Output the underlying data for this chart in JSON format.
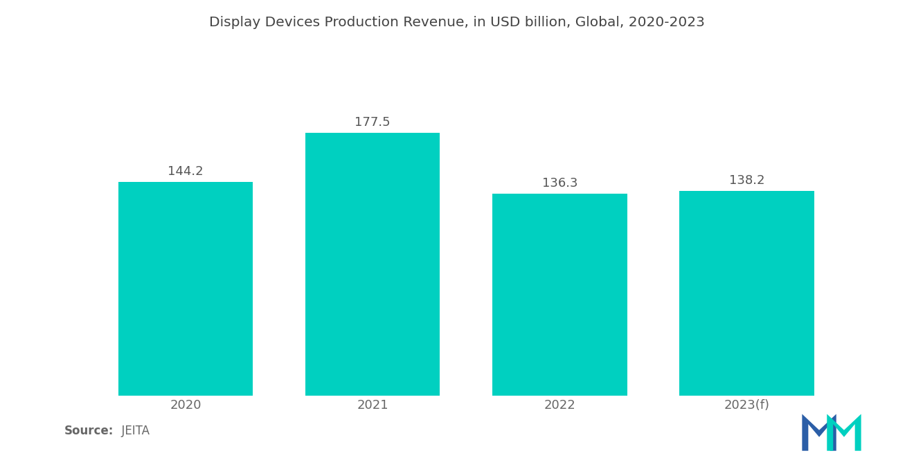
{
  "title": "Display Devices Production Revenue, in USD billion, Global, 2020-2023",
  "categories": [
    "2020",
    "2021",
    "2022",
    "2023(f)"
  ],
  "values": [
    144.2,
    177.5,
    136.3,
    138.2
  ],
  "bar_color": "#00D0C0",
  "value_labels": [
    "144.2",
    "177.5",
    "136.3",
    "138.2"
  ],
  "source_label": "Source:",
  "source_value": "  JEITA",
  "background_color": "#ffffff",
  "title_fontsize": 14.5,
  "label_fontsize": 13,
  "tick_fontsize": 13,
  "source_fontsize": 12,
  "ylim": [
    0,
    230
  ],
  "bar_width": 0.72,
  "logo_blue": "#2B5EA7",
  "logo_teal": "#00D0C0"
}
